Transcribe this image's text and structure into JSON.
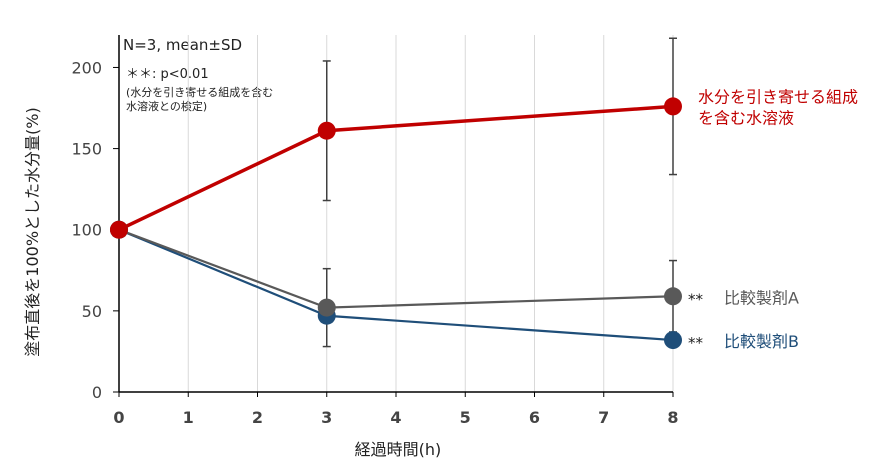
{
  "chart_data": {
    "type": "line",
    "xlabel": "経過時間(h)",
    "ylabel": "塗布直後を100%とした水分量(%)",
    "x": [
      0,
      3,
      8
    ],
    "x_ticks": [
      "0",
      "1",
      "2",
      "3",
      "4",
      "5",
      "6",
      "7",
      "8"
    ],
    "y_ticks": [
      "0",
      "50",
      "100",
      "150",
      "200"
    ],
    "xlim": [
      0,
      8
    ],
    "ylim": [
      0,
      220
    ],
    "grid": "vertical",
    "series": [
      {
        "name": "水分を引き寄せる組成を含む水溶液",
        "label_lines": [
          "水分を引き寄せる組成",
          "を含む水溶液"
        ],
        "sig": "",
        "color": "#c00000",
        "values": [
          100,
          161,
          176
        ],
        "err": [
          0,
          43,
          42
        ]
      },
      {
        "name": "比較製剤A",
        "label_lines": [
          "比較製剤A"
        ],
        "sig": "**",
        "color": "#595959",
        "values": [
          100,
          52,
          59
        ],
        "err": [
          0,
          24,
          22
        ]
      },
      {
        "name": "比較製剤B",
        "label_lines": [
          "比較製剤B"
        ],
        "sig": "**",
        "color": "#1f4e79",
        "values": [
          100,
          47,
          32
        ],
        "err": [
          0,
          0,
          0
        ]
      }
    ]
  },
  "notes": {
    "stats": "N=3, mean±SD",
    "sig_line": "＊＊: p<0.01",
    "sig_detail": [
      "(水分を引き寄せる組成を含む",
      "水溶液との検定)"
    ]
  }
}
